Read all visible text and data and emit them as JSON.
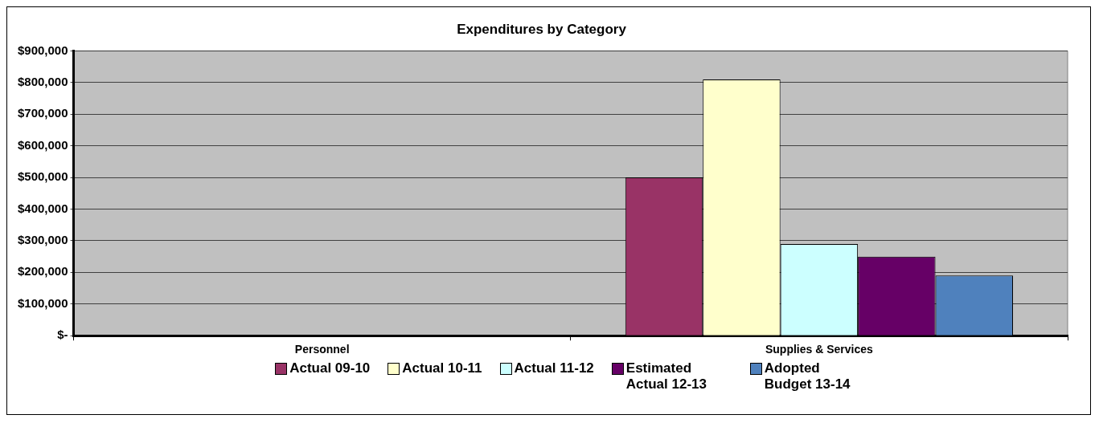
{
  "chart_data": {
    "type": "bar",
    "title": "Expenditures by Category",
    "categories": [
      "Personnel",
      "Supplies & Services"
    ],
    "series": [
      {
        "name": "Actual 09-10",
        "color": "#993366",
        "values": [
          0,
          500000
        ]
      },
      {
        "name": "Actual 10-11",
        "color": "#ffffcc",
        "values": [
          0,
          810000
        ]
      },
      {
        "name": "Actual 11-12",
        "color": "#ccffff",
        "values": [
          0,
          290000
        ]
      },
      {
        "name": "Estimated Actual 12-13",
        "color": "#660066",
        "values": [
          0,
          250000
        ]
      },
      {
        "name": "Adopted Budget 13-14",
        "color": "#4f81bd",
        "values": [
          0,
          190000
        ]
      }
    ],
    "ylim": [
      0,
      900000
    ],
    "yticks": [
      {
        "value": 0,
        "label": "$-"
      },
      {
        "value": 100000,
        "label": "$100,000"
      },
      {
        "value": 200000,
        "label": "$200,000"
      },
      {
        "value": 300000,
        "label": "$300,000"
      },
      {
        "value": 400000,
        "label": "$400,000"
      },
      {
        "value": 500000,
        "label": "$500,000"
      },
      {
        "value": 600000,
        "label": "$600,000"
      },
      {
        "value": 700000,
        "label": "$700,000"
      },
      {
        "value": 800000,
        "label": "$800,000"
      },
      {
        "value": 900000,
        "label": "$900,000"
      }
    ],
    "grid": "y",
    "legend": "bottom"
  }
}
